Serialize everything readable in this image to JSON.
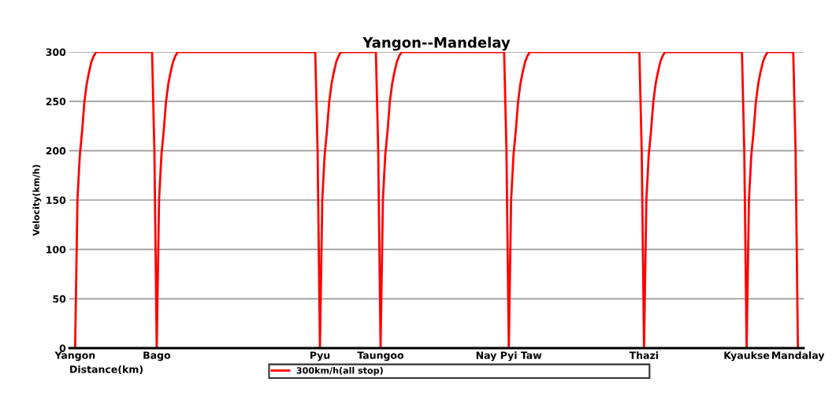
{
  "chart_data": {
    "type": "line",
    "title": "Yangon--Mandelay",
    "xlabel": "Distance(km)",
    "ylabel": "Velocity(km/h)",
    "ylim": [
      0,
      300
    ],
    "yticks": [
      0,
      50,
      100,
      150,
      200,
      250,
      300
    ],
    "categories": [
      "Yangon",
      null,
      null,
      null,
      null,
      null,
      null,
      null,
      null,
      null,
      null,
      null,
      null,
      null,
      null,
      null,
      null,
      null,
      null,
      null,
      null,
      null,
      null,
      null,
      null,
      null,
      null,
      null,
      null,
      null,
      null,
      null,
      null,
      null,
      null,
      "Bago",
      null,
      null,
      null,
      null,
      null,
      null,
      null,
      null,
      null,
      null,
      null,
      null,
      null,
      null,
      null,
      null,
      null,
      null,
      null,
      null,
      null,
      null,
      null,
      null,
      null,
      null,
      null,
      null,
      null,
      null,
      null,
      null,
      null,
      null,
      null,
      null,
      null,
      null,
      null,
      null,
      null,
      null,
      null,
      null,
      null,
      null,
      null,
      null,
      null,
      null,
      null,
      null,
      null,
      null,
      null,
      null,
      null,
      null,
      null,
      null,
      null,
      null,
      null,
      null,
      null,
      null,
      null,
      null,
      null,
      "Pyu",
      null,
      null,
      null,
      null,
      null,
      null,
      null,
      null,
      null,
      null,
      null,
      null,
      null,
      null,
      null,
      null,
      null,
      null,
      null,
      null,
      null,
      null,
      null,
      null,
      null,
      "Taungoo",
      null,
      null,
      null,
      null,
      null,
      null,
      null,
      null,
      null,
      null,
      null,
      null,
      null,
      null,
      null,
      null,
      null,
      null,
      null,
      null,
      null,
      null,
      null,
      null,
      null,
      null,
      null,
      null,
      null,
      null,
      null,
      null,
      null,
      null,
      null,
      null,
      null,
      null,
      null,
      null,
      null,
      null,
      null,
      null,
      null,
      null,
      null,
      null,
      null,
      null,
      null,
      null,
      null,
      null,
      "Nay Pyi Taw",
      null,
      null,
      null,
      null,
      null,
      null,
      null,
      null,
      null,
      null,
      null,
      null,
      null,
      null,
      null,
      null,
      null,
      null,
      null,
      null,
      null,
      null,
      null,
      null,
      null,
      null,
      null,
      null,
      null,
      null,
      null,
      null,
      null,
      null,
      null,
      null,
      null,
      null,
      null,
      null,
      null,
      null,
      null,
      null,
      null,
      null,
      null,
      null,
      null,
      null,
      null,
      null,
      null,
      null,
      null,
      null,
      null,
      "Thazi",
      null,
      null,
      null,
      null,
      null,
      null,
      null,
      null,
      null,
      null,
      null,
      null,
      null,
      null,
      null,
      null,
      null,
      null,
      null,
      null,
      null,
      null,
      null,
      null,
      null,
      null,
      null,
      null,
      null,
      null,
      null,
      null,
      null,
      null,
      null,
      null,
      null,
      null,
      null,
      null,
      null,
      null,
      null,
      "Kyaukse",
      null,
      null,
      null,
      null,
      null,
      null,
      null,
      null,
      null,
      null,
      null,
      null,
      null,
      null,
      null,
      null,
      null,
      null,
      null,
      null,
      null,
      "Mandalay"
    ],
    "grid": "y",
    "legend": "bottom",
    "marker": "none",
    "line_style": "solid",
    "series": [
      {
        "name": "300km/h(all stop)",
        "color": "#ff0000",
        "values": [
          0,
          150,
          195,
          220,
          250,
          268,
          280,
          290,
          296,
          300,
          300,
          300,
          300,
          300,
          300,
          300,
          300,
          300,
          300,
          300,
          300,
          300,
          300,
          300,
          300,
          300,
          300,
          300,
          300,
          300,
          300,
          300,
          300,
          300,
          200,
          0,
          150,
          195,
          220,
          250,
          268,
          280,
          290,
          296,
          300,
          300,
          300,
          300,
          300,
          300,
          300,
          300,
          300,
          300,
          300,
          300,
          300,
          300,
          300,
          300,
          300,
          300,
          300,
          300,
          300,
          300,
          300,
          300,
          300,
          300,
          300,
          300,
          300,
          300,
          300,
          300,
          300,
          300,
          300,
          300,
          300,
          300,
          300,
          300,
          300,
          300,
          300,
          300,
          300,
          300,
          300,
          300,
          300,
          300,
          300,
          300,
          300,
          300,
          300,
          300,
          300,
          300,
          300,
          300,
          200,
          0,
          150,
          195,
          220,
          250,
          268,
          280,
          290,
          296,
          300,
          300,
          300,
          300,
          300,
          300,
          300,
          300,
          300,
          300,
          300,
          300,
          300,
          300,
          300,
          300,
          200,
          0,
          150,
          195,
          220,
          250,
          268,
          280,
          290,
          296,
          300,
          300,
          300,
          300,
          300,
          300,
          300,
          300,
          300,
          300,
          300,
          300,
          300,
          300,
          300,
          300,
          300,
          300,
          300,
          300,
          300,
          300,
          300,
          300,
          300,
          300,
          300,
          300,
          300,
          300,
          300,
          300,
          300,
          300,
          300,
          300,
          300,
          300,
          300,
          300,
          300,
          300,
          300,
          300,
          300,
          200,
          0,
          150,
          195,
          220,
          250,
          268,
          280,
          290,
          296,
          300,
          300,
          300,
          300,
          300,
          300,
          300,
          300,
          300,
          300,
          300,
          300,
          300,
          300,
          300,
          300,
          300,
          300,
          300,
          300,
          300,
          300,
          300,
          300,
          300,
          300,
          300,
          300,
          300,
          300,
          300,
          300,
          300,
          300,
          300,
          300,
          300,
          300,
          300,
          300,
          300,
          300,
          300,
          300,
          300,
          300,
          300,
          300,
          200,
          0,
          150,
          195,
          220,
          250,
          268,
          280,
          290,
          296,
          300,
          300,
          300,
          300,
          300,
          300,
          300,
          300,
          300,
          300,
          300,
          300,
          300,
          300,
          300,
          300,
          300,
          300,
          300,
          300,
          300,
          300,
          300,
          300,
          300,
          300,
          300,
          300,
          300,
          300,
          300,
          300,
          300,
          300,
          200,
          0,
          150,
          195,
          220,
          250,
          268,
          280,
          290,
          296,
          300,
          300,
          300,
          300,
          300,
          300,
          300,
          300,
          300,
          300,
          300,
          300,
          200,
          0
        ]
      }
    ]
  }
}
